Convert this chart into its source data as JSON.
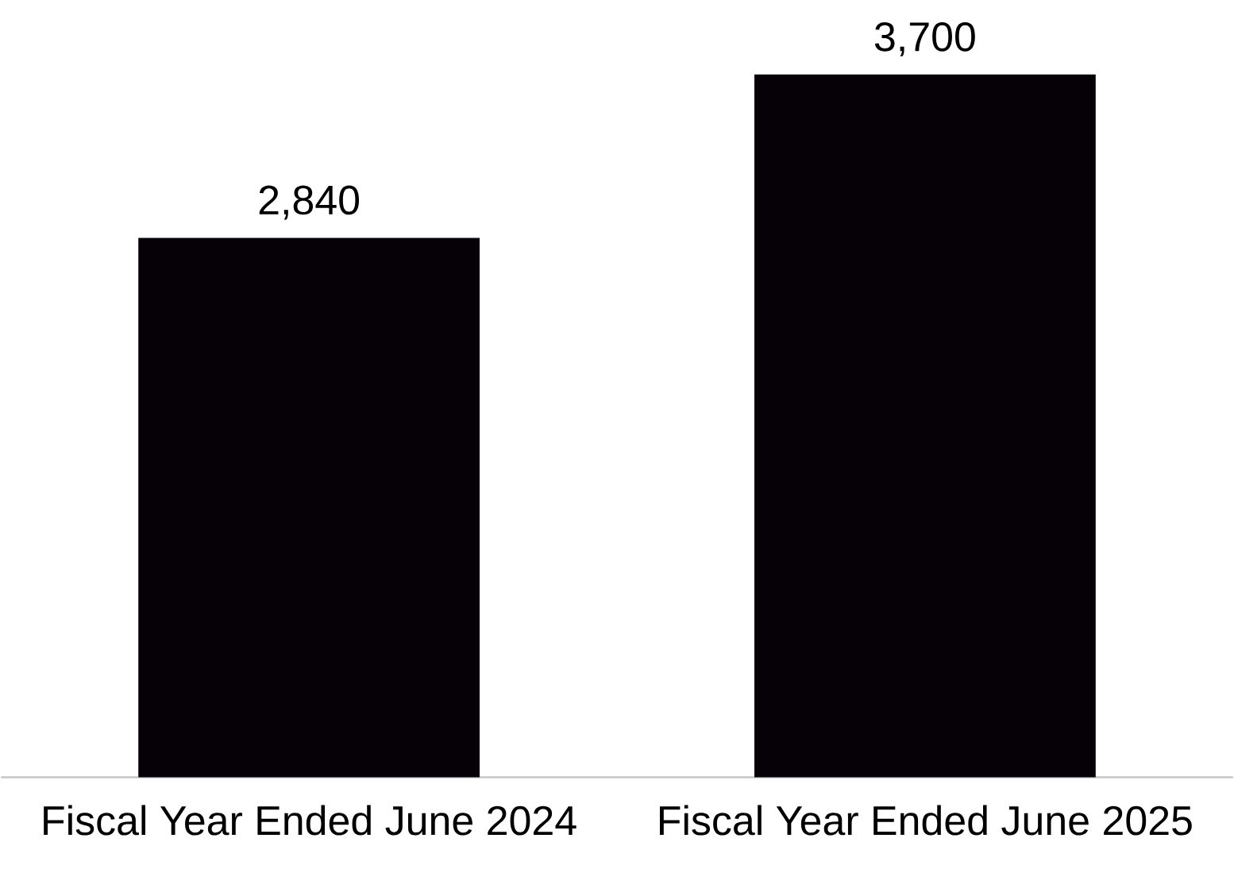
{
  "chart_data": {
    "type": "bar",
    "categories": [
      "Fiscal Year Ended June 2024",
      "Fiscal Year Ended June 2025"
    ],
    "values": [
      2840,
      3700
    ],
    "value_labels": [
      "2,840",
      "3,700"
    ],
    "color": "#050106"
  }
}
